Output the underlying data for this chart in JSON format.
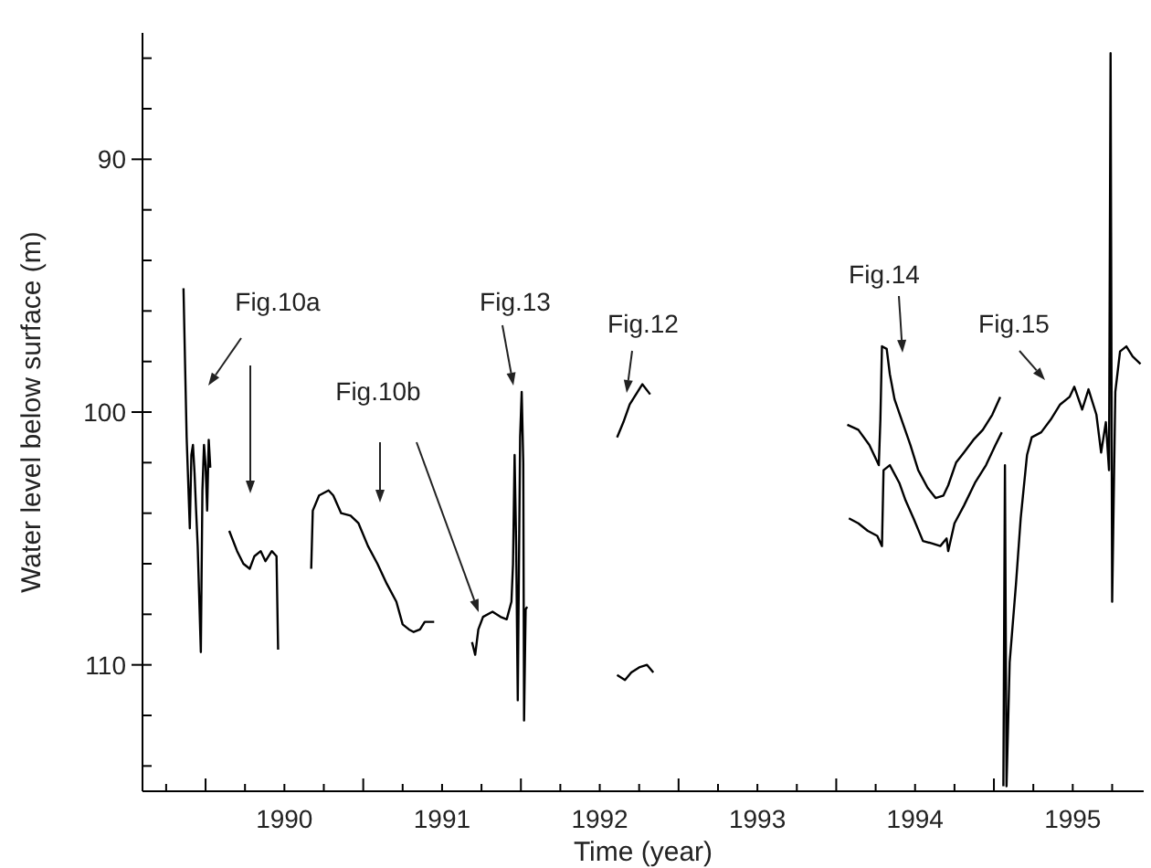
{
  "chart_data": {
    "type": "line",
    "xlabel": "Time (year)",
    "ylabel": "Water level below surface (m)",
    "xlim": [
      1989.6,
      1995.95
    ],
    "ylim": [
      115,
      85
    ],
    "xticks": [
      {
        "value": 1989.75,
        "label": null
      },
      {
        "value": 1990,
        "label": null
      },
      {
        "value": 1990.25,
        "label": null
      },
      {
        "value": 1990.5,
        "label": "1990"
      },
      {
        "value": 1990.75,
        "label": null
      },
      {
        "value": 1991,
        "label": null
      },
      {
        "value": 1991.25,
        "label": null
      },
      {
        "value": 1991.5,
        "label": "1991"
      },
      {
        "value": 1991.75,
        "label": null
      },
      {
        "value": 1992,
        "label": null
      },
      {
        "value": 1992.25,
        "label": null
      },
      {
        "value": 1992.5,
        "label": "1992"
      },
      {
        "value": 1992.75,
        "label": null
      },
      {
        "value": 1993,
        "label": null
      },
      {
        "value": 1993.25,
        "label": null
      },
      {
        "value": 1993.5,
        "label": "1993"
      },
      {
        "value": 1993.75,
        "label": null
      },
      {
        "value": 1994,
        "label": null
      },
      {
        "value": 1994.25,
        "label": null
      },
      {
        "value": 1994.5,
        "label": "1994"
      },
      {
        "value": 1994.75,
        "label": null
      },
      {
        "value": 1995,
        "label": null
      },
      {
        "value": 1995.25,
        "label": null
      },
      {
        "value": 1995.5,
        "label": "1995"
      },
      {
        "value": 1995.75,
        "label": null
      }
    ],
    "yticks": [
      {
        "value": 86,
        "label": null
      },
      {
        "value": 88,
        "label": null
      },
      90,
      {
        "value": 92,
        "label": null
      },
      {
        "value": 94,
        "label": null
      },
      {
        "value": 96,
        "label": null
      },
      {
        "value": 98,
        "label": null
      },
      100,
      {
        "value": 102,
        "label": null
      },
      {
        "value": 104,
        "label": null
      },
      {
        "value": 106,
        "label": null
      },
      {
        "value": 108,
        "label": null
      },
      110,
      {
        "value": 112,
        "label": null
      },
      {
        "value": 114,
        "label": null
      }
    ],
    "marker": "none",
    "line_style": "solid",
    "series": [
      {
        "color": "#000000",
        "x": [
          1989.86,
          1989.87,
          1989.88,
          1989.9,
          1989.91,
          1989.92,
          1989.93,
          1989.94,
          1989.95,
          1989.97,
          1989.98,
          1989.99,
          1990.0,
          1990.01,
          1990.02,
          1990.03
        ],
        "values": [
          95.1,
          98.1,
          101.0,
          104.6,
          101.7,
          101.3,
          102.4,
          103.9,
          105.3,
          109.5,
          103.1,
          101.3,
          102.1,
          103.9,
          101.1,
          102.2
        ]
      },
      {
        "color": "#000000",
        "x": [
          1990.15,
          1990.2,
          1990.24,
          1990.28,
          1990.31,
          1990.35,
          1990.38,
          1990.42,
          1990.45,
          1990.46
        ],
        "values": [
          104.7,
          105.5,
          106.0,
          106.2,
          105.7,
          105.5,
          105.9,
          105.5,
          105.7,
          109.4
        ]
      },
      {
        "color": "#000000",
        "x": [
          1990.67,
          1990.68,
          1990.72,
          1990.78,
          1990.81,
          1990.86,
          1990.92,
          1990.97,
          1991.03,
          1991.09,
          1991.15,
          1991.21,
          1991.25,
          1991.29,
          1991.32,
          1991.36,
          1991.39,
          1991.45
        ],
        "values": [
          106.2,
          103.9,
          103.3,
          103.1,
          103.3,
          104.0,
          104.1,
          104.4,
          105.3,
          106.0,
          106.8,
          107.5,
          108.4,
          108.6,
          108.7,
          108.6,
          108.3,
          108.3
        ]
      },
      {
        "color": "#000000",
        "x": [
          1991.69,
          1991.71,
          1991.73,
          1991.76,
          1991.82,
          1991.87,
          1991.91,
          1991.94,
          1991.95,
          1991.96,
          1991.97,
          1991.98,
          1991.995,
          1992.005,
          1992.015,
          1992.02,
          1992.03,
          1992.04
        ],
        "values": [
          109.1,
          109.6,
          108.6,
          108.1,
          107.9,
          108.1,
          108.2,
          107.5,
          106.0,
          101.7,
          105.3,
          111.4,
          101.0,
          99.2,
          102.0,
          112.2,
          107.8,
          107.7
        ]
      },
      {
        "color": "#000000",
        "x": [
          1992.61,
          1992.65,
          1992.69,
          1992.74,
          1992.77,
          1992.82
        ],
        "values": [
          101.0,
          100.4,
          99.7,
          99.2,
          98.9,
          99.3
        ]
      },
      {
        "color": "#000000",
        "x": [
          1992.61,
          1992.66,
          1992.7,
          1992.75,
          1992.8,
          1992.84
        ],
        "values": [
          110.4,
          110.6,
          110.3,
          110.1,
          110.0,
          110.3
        ]
      },
      {
        "color": "#000000",
        "x": [
          1994.07,
          1994.14,
          1994.21,
          1994.27,
          1994.28,
          1994.29,
          1994.32,
          1994.34,
          1994.37,
          1994.42,
          1994.47,
          1994.52,
          1994.58,
          1994.63,
          1994.68,
          1994.71,
          1994.76,
          1994.81,
          1994.87,
          1994.93,
          1994.99,
          1995.04
        ],
        "values": [
          100.5,
          100.7,
          101.3,
          102.1,
          100.3,
          97.4,
          97.5,
          98.5,
          99.5,
          100.4,
          101.3,
          102.3,
          103.0,
          103.4,
          103.3,
          102.9,
          102.0,
          101.6,
          101.1,
          100.7,
          100.1,
          99.4
        ]
      },
      {
        "color": "#000000",
        "x": [
          1994.08,
          1994.14,
          1994.2,
          1994.26,
          1994.29,
          1994.3,
          1994.34,
          1994.4,
          1994.44,
          1994.49,
          1994.55,
          1994.61,
          1994.66,
          1994.7,
          1994.71,
          1994.75,
          1994.81,
          1994.88,
          1994.95,
          1995.01,
          1995.05
        ],
        "values": [
          104.2,
          104.4,
          104.7,
          104.9,
          105.3,
          102.3,
          102.1,
          102.8,
          103.5,
          104.2,
          105.1,
          105.2,
          105.3,
          105.0,
          105.5,
          104.4,
          103.7,
          102.8,
          102.1,
          101.3,
          100.8
        ]
      },
      {
        "color": "#000000",
        "x": [
          1995.06,
          1995.07,
          1995.08,
          1995.1,
          1995.14,
          1995.17,
          1995.21,
          1995.24,
          1995.3,
          1995.36,
          1995.42,
          1995.48,
          1995.51,
          1995.56,
          1995.6,
          1995.65,
          1995.68,
          1995.71,
          1995.73,
          1995.74,
          1995.75,
          1995.77,
          1995.8,
          1995.84,
          1995.88,
          1995.93
        ],
        "values": [
          114.8,
          102.1,
          114.8,
          109.9,
          106.8,
          104.2,
          101.7,
          101.0,
          100.8,
          100.3,
          99.7,
          99.4,
          99.0,
          99.9,
          99.1,
          100.1,
          101.6,
          100.4,
          102.3,
          85.8,
          107.5,
          99.2,
          97.6,
          97.4,
          97.8,
          98.1
        ]
      }
    ],
    "annotations": [
      "Fig.10a",
      "Fig.10b",
      "Fig.13",
      "Fig.12",
      "Fig.14",
      "Fig.15"
    ]
  }
}
